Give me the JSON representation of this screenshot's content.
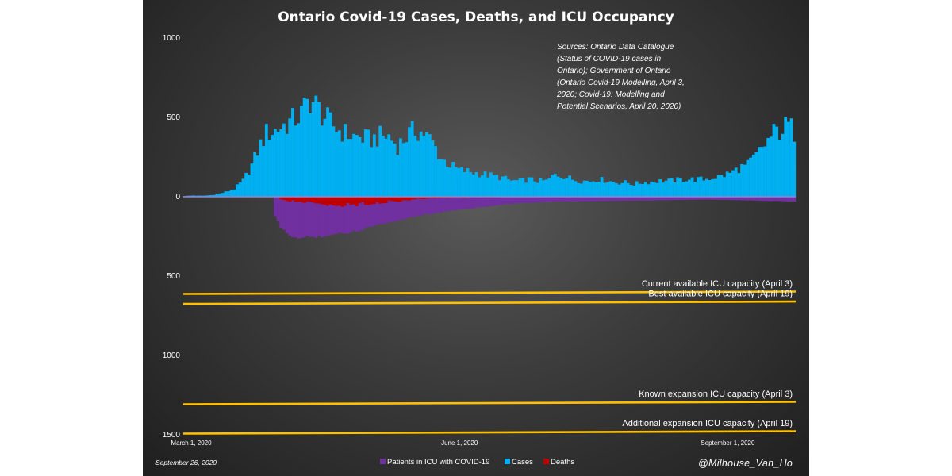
{
  "chart_data": {
    "type": "bar",
    "title": "Ontario Covid-19 Cases, Deaths, and ICU Occupancy",
    "y_axis": {
      "lim": [
        -1500,
        1000
      ],
      "ticks": [
        {
          "value": 1000,
          "label": "1000"
        },
        {
          "value": 500,
          "label": "500"
        },
        {
          "value": 0,
          "label": "0"
        },
        {
          "value": -500,
          "label": "500"
        },
        {
          "value": -1000,
          "label": "1000"
        },
        {
          "value": -1500,
          "label": "1500"
        }
      ]
    },
    "x_axis": {
      "start_date": "2020-03-01",
      "end_date": "2020-09-26",
      "days": 210,
      "ticks": [
        {
          "day": 0,
          "label": "March 1, 2020"
        },
        {
          "day": 92,
          "label": "June 1, 2020"
        },
        {
          "day": 184,
          "label": "September 1, 2020"
        }
      ]
    },
    "series": [
      {
        "name": "Cases",
        "color": "#00b0f0",
        "direction": "up",
        "anchors": [
          [
            0,
            5
          ],
          [
            3,
            8
          ],
          [
            6,
            6
          ],
          [
            9,
            10
          ],
          [
            12,
            20
          ],
          [
            14,
            30
          ],
          [
            17,
            50
          ],
          [
            20,
            100
          ],
          [
            23,
            200
          ],
          [
            26,
            330
          ],
          [
            28,
            400
          ],
          [
            31,
            420
          ],
          [
            34,
            450
          ],
          [
            37,
            480
          ],
          [
            40,
            520
          ],
          [
            43,
            620
          ],
          [
            46,
            550
          ],
          [
            49,
            480
          ],
          [
            52,
            430
          ],
          [
            55,
            400
          ],
          [
            58,
            380
          ],
          [
            61,
            370
          ],
          [
            64,
            360
          ],
          [
            67,
            380
          ],
          [
            70,
            380
          ],
          [
            73,
            320
          ],
          [
            76,
            380
          ],
          [
            79,
            420
          ],
          [
            82,
            400
          ],
          [
            85,
            340
          ],
          [
            88,
            240
          ],
          [
            91,
            200
          ],
          [
            94,
            170
          ],
          [
            97,
            160
          ],
          [
            100,
            150
          ],
          [
            103,
            140
          ],
          [
            106,
            130
          ],
          [
            109,
            120
          ],
          [
            112,
            100
          ],
          [
            115,
            100
          ],
          [
            118,
            110
          ],
          [
            121,
            100
          ],
          [
            124,
            100
          ],
          [
            127,
            140
          ],
          [
            130,
            130
          ],
          [
            133,
            110
          ],
          [
            136,
            100
          ],
          [
            139,
            100
          ],
          [
            142,
            110
          ],
          [
            145,
            100
          ],
          [
            148,
            90
          ],
          [
            151,
            90
          ],
          [
            154,
            80
          ],
          [
            157,
            90
          ],
          [
            160,
            95
          ],
          [
            163,
            100
          ],
          [
            166,
            100
          ],
          [
            169,
            105
          ],
          [
            172,
            110
          ],
          [
            175,
            110
          ],
          [
            178,
            110
          ],
          [
            181,
            120
          ],
          [
            184,
            130
          ],
          [
            187,
            150
          ],
          [
            190,
            180
          ],
          [
            193,
            200
          ],
          [
            196,
            260
          ],
          [
            199,
            330
          ],
          [
            202,
            400
          ],
          [
            205,
            430
          ],
          [
            207,
            450
          ],
          [
            209,
            410
          ]
        ],
        "wiggle": 0.18
      },
      {
        "name": "Patients in ICU with COVID-19",
        "color": "#7030a0",
        "direction": "down",
        "anchors": [
          [
            0,
            0
          ],
          [
            30,
            0
          ],
          [
            31,
            120
          ],
          [
            33,
            200
          ],
          [
            36,
            240
          ],
          [
            39,
            265
          ],
          [
            42,
            255
          ],
          [
            46,
            250
          ],
          [
            50,
            240
          ],
          [
            55,
            230
          ],
          [
            60,
            210
          ],
          [
            65,
            180
          ],
          [
            70,
            160
          ],
          [
            75,
            140
          ],
          [
            80,
            120
          ],
          [
            85,
            105
          ],
          [
            90,
            90
          ],
          [
            95,
            80
          ],
          [
            100,
            70
          ],
          [
            105,
            58
          ],
          [
            110,
            48
          ],
          [
            115,
            42
          ],
          [
            120,
            36
          ],
          [
            125,
            32
          ],
          [
            130,
            30
          ],
          [
            140,
            28
          ],
          [
            150,
            25
          ],
          [
            160,
            23
          ],
          [
            170,
            20
          ],
          [
            180,
            18
          ],
          [
            190,
            22
          ],
          [
            200,
            26
          ],
          [
            209,
            30
          ]
        ],
        "wiggle": 0.04
      },
      {
        "name": "Deaths",
        "color": "#c00000",
        "direction": "down",
        "anchors": [
          [
            0,
            0
          ],
          [
            32,
            0
          ],
          [
            33,
            20
          ],
          [
            36,
            25
          ],
          [
            40,
            35
          ],
          [
            45,
            45
          ],
          [
            48,
            55
          ],
          [
            52,
            55
          ],
          [
            56,
            50
          ],
          [
            60,
            45
          ],
          [
            64,
            40
          ],
          [
            68,
            35
          ],
          [
            72,
            28
          ],
          [
            76,
            22
          ],
          [
            80,
            15
          ],
          [
            84,
            10
          ],
          [
            88,
            8
          ],
          [
            92,
            6
          ],
          [
            100,
            5
          ],
          [
            110,
            3
          ],
          [
            120,
            2
          ],
          [
            209,
            2
          ]
        ],
        "wiggle": 0.3
      }
    ],
    "reference_lines": [
      {
        "label": "Current available ICU capacity (April 3)",
        "value": 605,
        "color": "#ffc000"
      },
      {
        "label": "Best available ICU capacity (April 19)",
        "value": 668,
        "color": "#ffc000"
      },
      {
        "label": "Known expansion ICU capacity (April 3)",
        "value": 1300,
        "color": "#ffc000"
      },
      {
        "label": "Additional expansion ICU capacity (April 19)",
        "value": 1485,
        "color": "#ffc000"
      }
    ],
    "annotation": "Sources: Ontario Data Catalogue (Status of COVID-19 cases in Ontario); Government of Ontario (Ontario Covid-19 Modelling, April 3, 2020; Covid-19: Modelling and Potential Scenarios, April 20, 2020)",
    "annotation_lines": [
      "Sources: Ontario Data Catalogue",
      "(Status of COVID-19 cases in",
      "Ontario); Government of Ontario",
      "(Ontario Covid-19 Modelling, April 3,",
      "2020; Covid-19: Modelling and",
      "Potential Scenarios, April 20, 2020)"
    ],
    "legend": [
      {
        "label": "Patients in ICU with COVID-19",
        "color": "#7030a0"
      },
      {
        "label": "Cases",
        "color": "#00b0f0"
      },
      {
        "label": "Deaths",
        "color": "#c00000"
      }
    ],
    "date_note": "September 26, 2020",
    "credit": "@Milhouse_Van_Ho"
  }
}
